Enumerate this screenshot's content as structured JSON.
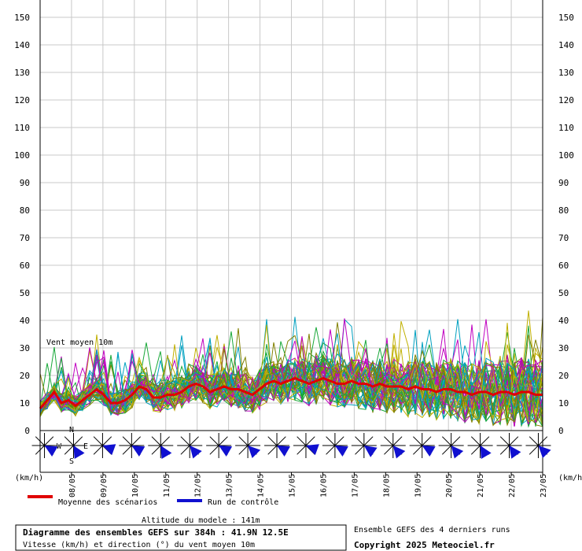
{
  "chart_data": {
    "type": "line",
    "y_range": [
      0,
      155
    ],
    "y_ticks": [
      0,
      10,
      20,
      30,
      40,
      50,
      60,
      70,
      80,
      90,
      100,
      110,
      120,
      130,
      140,
      150
    ],
    "unit_left": "(km/h)",
    "unit_right": "(km/h)",
    "date_labels": [
      "08/05",
      "09/05",
      "10/05",
      "11/05",
      "12/05",
      "13/05",
      "14/05",
      "15/05",
      "16/05",
      "17/05",
      "18/05",
      "19/05",
      "20/05",
      "21/05",
      "22/05",
      "23/05"
    ],
    "inner_label": "Vent moyen 10m",
    "mean_series": {
      "name": "Moyenne des scénarios",
      "color": "#e00000",
      "values": [
        8,
        11,
        14,
        10,
        11,
        9,
        11,
        13,
        15,
        13,
        10,
        10,
        11,
        13,
        16,
        15,
        12,
        12,
        13,
        13,
        14,
        16,
        17,
        16,
        14,
        15,
        16,
        15,
        15,
        14,
        13,
        15,
        17,
        18,
        17,
        18,
        19,
        18,
        17,
        18,
        19,
        18,
        17,
        17,
        18,
        17,
        17,
        16,
        17,
        16,
        16,
        16,
        15,
        16,
        15,
        15,
        14,
        15,
        15,
        14,
        14,
        13,
        14,
        14,
        13,
        14,
        14,
        13,
        14,
        14,
        13,
        13
      ]
    },
    "control_series_legend": {
      "name": "Run de contrôle",
      "color": "#1010d0"
    },
    "ensemble_colors": [
      "#18a838",
      "#c0b000",
      "#c000c0",
      "#00a0c0",
      "#808000"
    ],
    "wind_directions_deg": [
      300,
      330,
      290,
      300,
      330,
      320,
      300,
      315,
      300,
      290,
      300,
      305,
      320,
      300,
      320,
      330,
      325,
      315
    ],
    "grid": true
  },
  "legend": {
    "mean_label": "Moyenne des scénarios",
    "control_label": "Run de contrôle"
  },
  "compass": {
    "n": "N",
    "s": "S",
    "w": "W",
    "e": "E"
  },
  "footer": {
    "altitude": "Altitude du modele : 141m",
    "title": "Diagramme des ensembles GEFS sur 384h : 41.9N 12.5E",
    "subtitle": "Vitesse (km/h) et direction (°) du vent moyen 10m",
    "runs": "Ensemble GEFS des 4 derniers runs",
    "copyright": "Copyright 2025 Meteociel.fr"
  }
}
